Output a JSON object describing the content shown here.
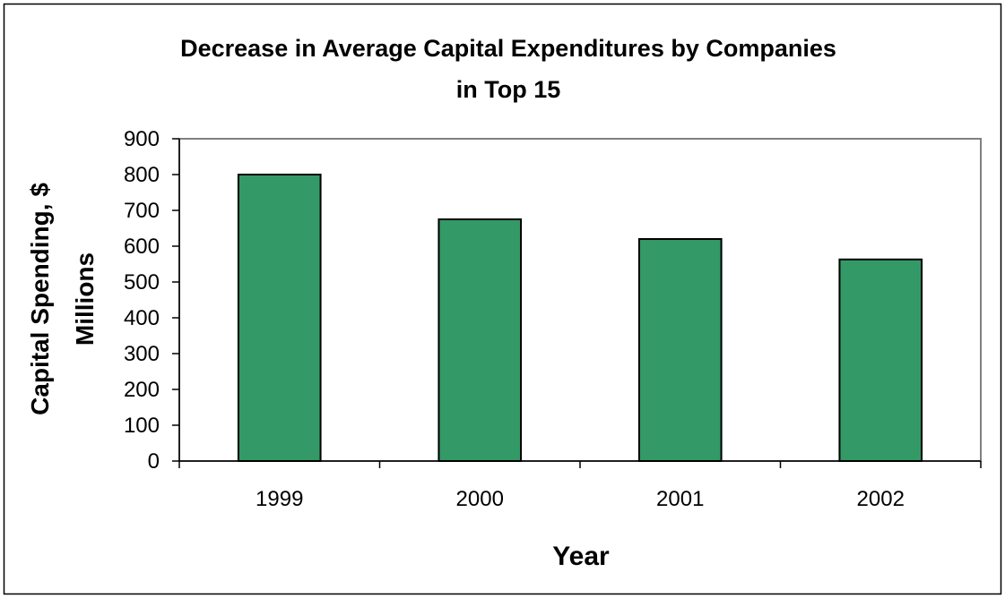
{
  "chart_data": {
    "type": "bar",
    "title_lines": [
      "Decrease in Average Capital Expenditures by Companies",
      "in Top 15"
    ],
    "xlabel": "Year",
    "ylabel_lines": [
      "Capital Spending, $",
      "Millions"
    ],
    "categories": [
      "1999",
      "2000",
      "2001",
      "2002"
    ],
    "values": [
      800,
      675,
      620,
      563
    ],
    "ylim": [
      0,
      900
    ],
    "yticks": [
      "0",
      "100",
      "200",
      "300",
      "400",
      "500",
      "600",
      "700",
      "800",
      "900"
    ],
    "grid": false,
    "legend": "none",
    "bar_color": "#339966",
    "plot_border_color": "#808080"
  }
}
